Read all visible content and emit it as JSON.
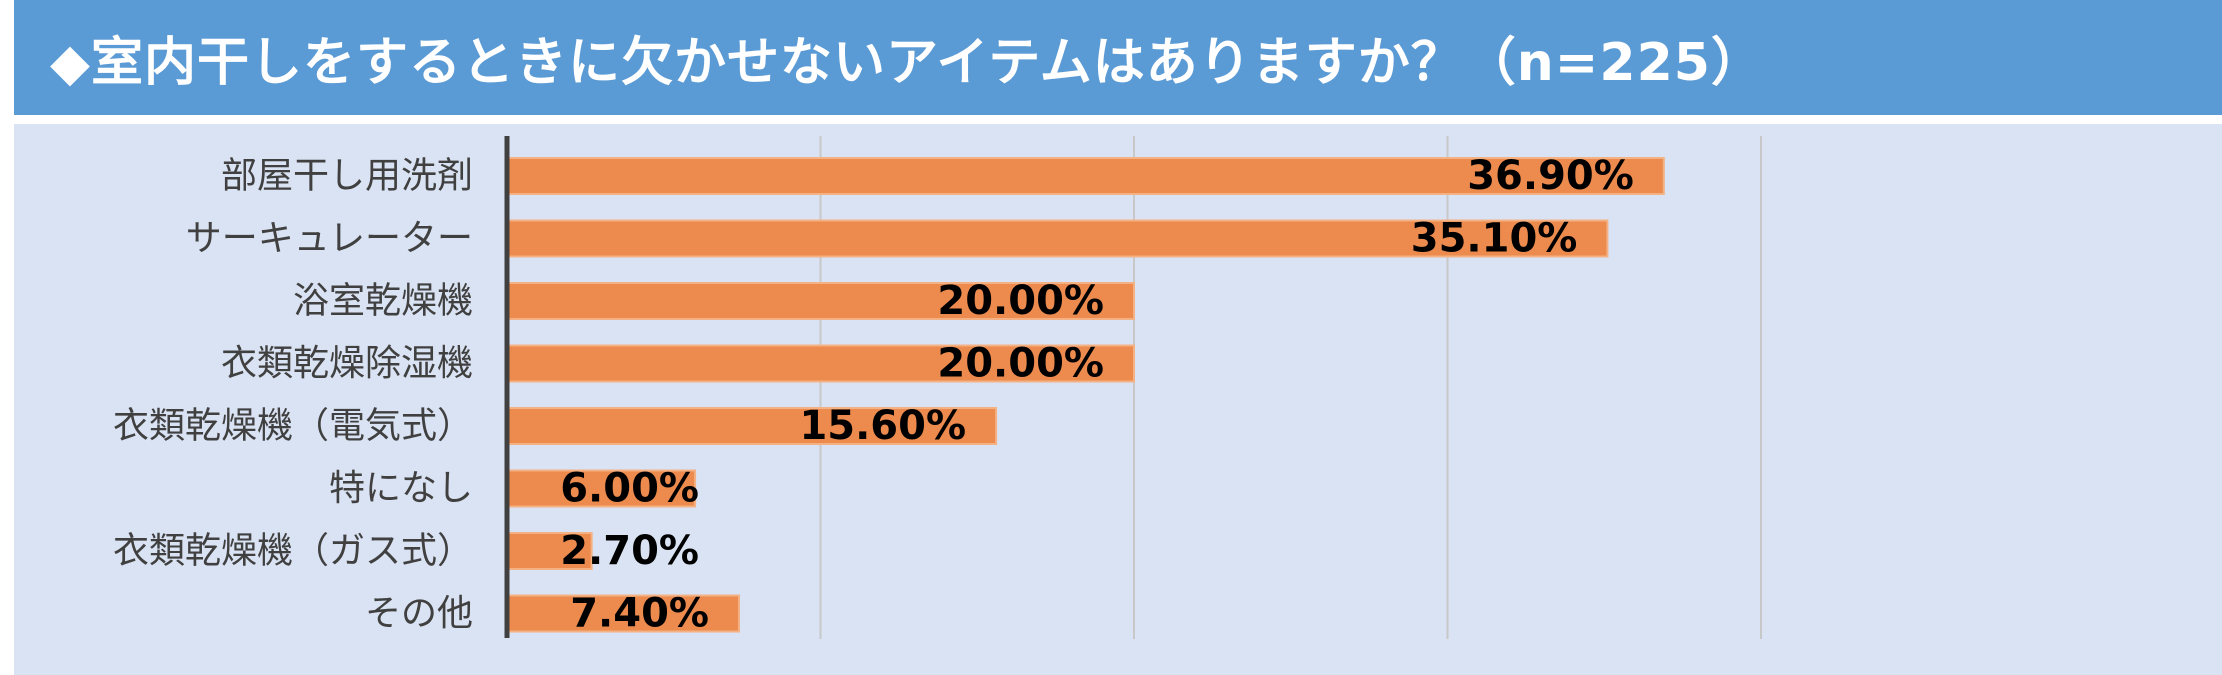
{
  "title": "◆室内干しをするときに欠かせないアイテムはありますか？（n=225）",
  "colors": {
    "header_bg": "#5b9bd5",
    "plot_bg": "#dae3f3",
    "bar": "#ed8b4e",
    "grid": "#c8c8c8",
    "axis": "#404040"
  },
  "chart_data": {
    "type": "bar",
    "orientation": "horizontal",
    "title": "◆室内干しをするときに欠かせないアイテムはありますか？（n=225）",
    "categories": [
      "部屋干し用洗剤",
      "サーキュレーター",
      "浴室乾燥機",
      "衣類乾燥除湿機",
      "衣類乾燥機（電気式）",
      "特になし",
      "衣類乾燥機（ガス式）",
      "その他"
    ],
    "values": [
      36.9,
      35.1,
      20.0,
      20.0,
      15.6,
      6.0,
      2.7,
      7.4
    ],
    "value_labels": [
      "36.90%",
      "35.10%",
      "20.00%",
      "20.00%",
      "15.60%",
      "6.00%",
      "2.70%",
      "7.40%"
    ],
    "unit": "%",
    "xlim": [
      0,
      50
    ],
    "grid": true,
    "show_axis_ticks": false,
    "legend": "none"
  }
}
